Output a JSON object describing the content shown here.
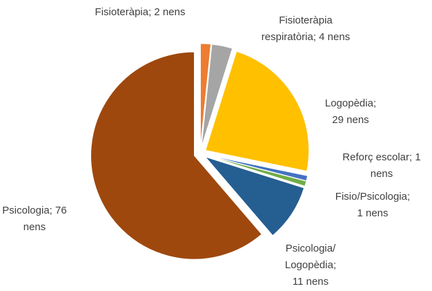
{
  "chart_data": {
    "type": "pie",
    "values": [
      2,
      4,
      29,
      1,
      1,
      11,
      76
    ],
    "value_labels": [
      "Fisioteràpia; 2 nens",
      "Fisioteràpia\nrespiratòria; 4 nens",
      "Logopèdia;\n29 nens",
      "Reforç escolar; 1\nnens",
      "Fisio/Psicologia;\n1 nens",
      "Psicologia/\nLogopèdia;\n11 nens",
      "Psicologia; 76\nnens"
    ],
    "colors": [
      "#ed7d31",
      "#a5a5a5",
      "#ffc000",
      "#4472c4",
      "#70ad47",
      "#255e91",
      "#9e480e"
    ]
  }
}
